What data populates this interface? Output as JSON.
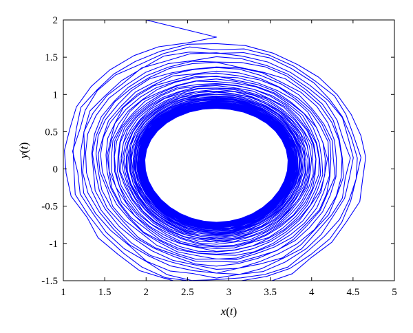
{
  "chart_data": {
    "type": "line",
    "xlabel": "x(t)",
    "ylabel": "y(t)",
    "xlim": [
      1,
      5
    ],
    "ylim": [
      -1.5,
      2
    ],
    "xticks": [
      "1",
      "1.5",
      "2",
      "2.5",
      "3",
      "3.5",
      "4",
      "4.5",
      "5"
    ],
    "yticks": [
      "2",
      "1.5",
      "1",
      "0.5",
      "0",
      "-0.5",
      "-1",
      "-1.5"
    ],
    "grid": false,
    "legend": "none",
    "series": [
      {
        "color": "#0000ff",
        "description_of_trajectory": null,
        "start": [
          2.0,
          2.0
        ],
        "center": [
          2.85,
          0.05
        ],
        "outer_x_range": [
          1.05,
          4.8
        ],
        "outer_y_range": [
          -1.45,
          2.0
        ],
        "inner_x_range": [
          2.0,
          3.7
        ],
        "inner_y_range": [
          -0.7,
          0.8
        ]
      }
    ]
  }
}
